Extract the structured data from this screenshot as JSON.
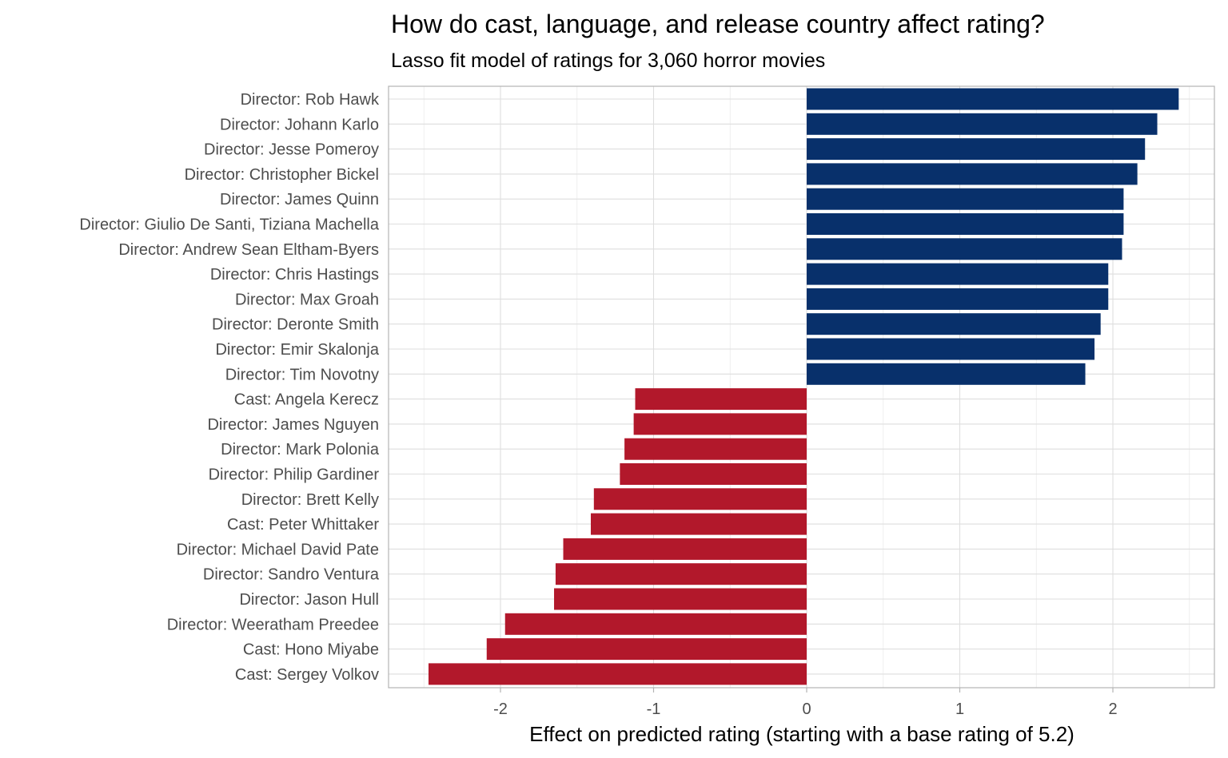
{
  "chart_data": {
    "type": "bar",
    "orientation": "horizontal",
    "title": "How do cast, language, and release country affect rating?",
    "subtitle": "Lasso fit model of ratings for 3,060 horror movies",
    "xlabel": "Effect on predicted rating (starting with a base rating of 5.2)",
    "ylabel": "",
    "xlim": [
      -2.6,
      2.7
    ],
    "x_ticks": [
      -2,
      -1,
      0,
      1,
      2
    ],
    "x_tick_labels": [
      "-2",
      "-1",
      "0",
      "1",
      "2"
    ],
    "grid": true,
    "legend": "none",
    "colors": {
      "positive": "#08306b",
      "negative": "#b2182b"
    },
    "categories": [
      "Director: Rob Hawk",
      "Director: Johann Karlo",
      "Director: Jesse Pomeroy",
      "Director: Christopher Bickel",
      "Director: James Quinn",
      "Director: Giulio De Santi, Tiziana Machella",
      "Director: Andrew Sean Eltham-Byers",
      "Director: Chris Hastings",
      "Director: Max Groah",
      "Director: Deronte Smith",
      "Director: Emir Skalonja",
      "Director: Tim Novotny",
      "Cast: Angela Kerecz",
      "Director: James Nguyen",
      "Director: Mark Polonia",
      "Director: Philip Gardiner",
      "Director: Brett Kelly",
      "Cast: Peter Whittaker",
      "Director: Michael David Pate",
      "Director: Sandro Ventura",
      "Director: Jason Hull",
      "Director: Weeratham Preedee",
      "Cast: Hono Miyabe",
      "Cast: Sergey Volkov"
    ],
    "values": [
      2.43,
      2.29,
      2.21,
      2.16,
      2.07,
      2.07,
      2.06,
      1.97,
      1.97,
      1.92,
      1.88,
      1.82,
      -1.12,
      -1.13,
      -1.19,
      -1.22,
      -1.39,
      -1.41,
      -1.59,
      -1.64,
      -1.65,
      -1.97,
      -2.09,
      -2.47
    ]
  }
}
